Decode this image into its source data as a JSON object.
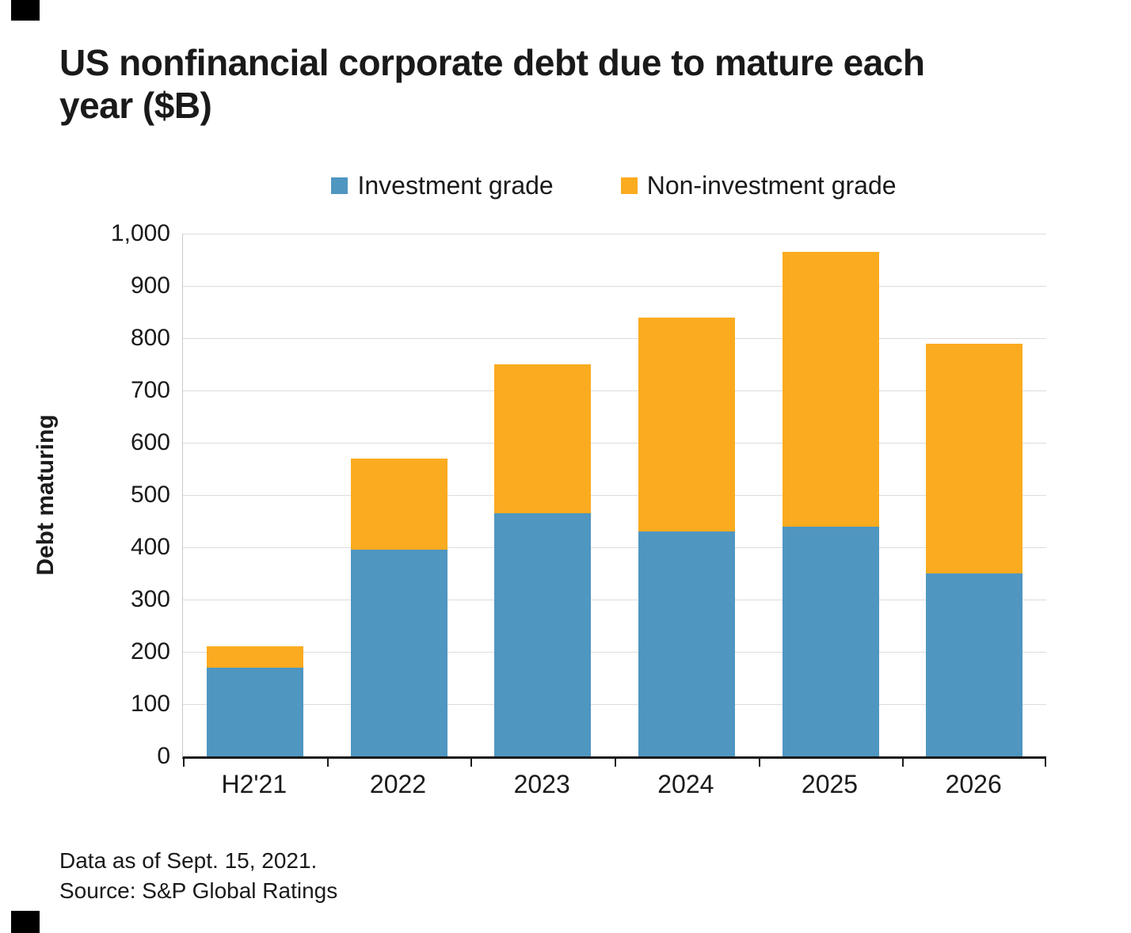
{
  "page": {
    "footnote_line1": "Data as of Sept. 15, 2021.",
    "footnote_line2": "Source: S&P Global Ratings"
  },
  "chart_data": {
    "type": "bar",
    "stacked": true,
    "title": "US nonfinancial corporate debt due to mature each year ($B)",
    "ylabel": "Debt maturing",
    "categories": [
      "H2'21",
      "2022",
      "2023",
      "2024",
      "2025",
      "2026"
    ],
    "series": [
      {
        "name": "Investment grade",
        "color": "#4f96c1",
        "values": [
          170,
          395,
          465,
          430,
          440,
          350
        ]
      },
      {
        "name": "Non-investment grade",
        "color": "#fbab20",
        "values": [
          40,
          175,
          285,
          410,
          525,
          440
        ]
      }
    ],
    "totals": [
      210,
      570,
      750,
      840,
      965,
      790
    ],
    "ylim": [
      0,
      1000
    ],
    "ytick_step": 100,
    "grid": true,
    "legend_position": "top"
  }
}
